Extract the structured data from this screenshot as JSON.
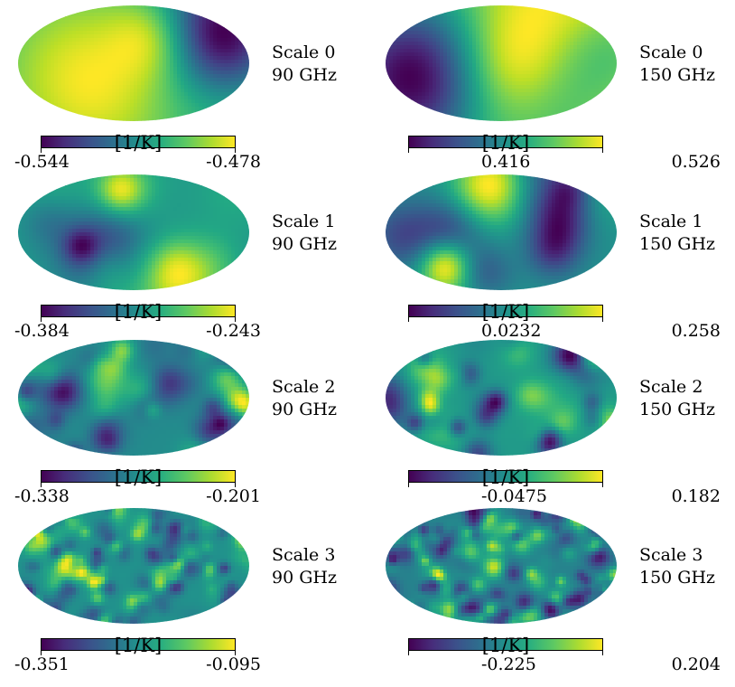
{
  "chart_data": [
    {
      "type": "heatmap",
      "projection": "mollweide",
      "scale_label": "Scale 0",
      "freq_label": "90 GHz",
      "colorbar": {
        "min": "-0.544",
        "max": "-0.478",
        "unit": "[1/K]",
        "colormap": "viridis"
      },
      "seed": 11,
      "blob_count": 6,
      "blob_size": 0.38
    },
    {
      "type": "heatmap",
      "projection": "mollweide",
      "scale_label": "Scale 0",
      "freq_label": "150 GHz",
      "colorbar": {
        "min": "0.416",
        "max": "0.526",
        "unit": "[1/K]",
        "colormap": "viridis"
      },
      "seed": 23,
      "blob_count": 6,
      "blob_size": 0.38
    },
    {
      "type": "heatmap",
      "projection": "mollweide",
      "scale_label": "Scale 1",
      "freq_label": "90 GHz",
      "colorbar": {
        "min": "-0.384",
        "max": "-0.243",
        "unit": "[1/K]",
        "colormap": "viridis"
      },
      "seed": 37,
      "blob_count": 18,
      "blob_size": 0.17
    },
    {
      "type": "heatmap",
      "projection": "mollweide",
      "scale_label": "Scale 1",
      "freq_label": "150 GHz",
      "colorbar": {
        "min": "0.0232",
        "max": "0.258",
        "unit": "[1/K]",
        "colormap": "viridis"
      },
      "seed": 41,
      "blob_count": 18,
      "blob_size": 0.17
    },
    {
      "type": "heatmap",
      "projection": "mollweide",
      "scale_label": "Scale 2",
      "freq_label": "90 GHz",
      "colorbar": {
        "min": "-0.338",
        "max": "-0.201",
        "unit": "[1/K]",
        "colormap": "viridis"
      },
      "seed": 53,
      "blob_count": 55,
      "blob_size": 0.085
    },
    {
      "type": "heatmap",
      "projection": "mollweide",
      "scale_label": "Scale 2",
      "freq_label": "150 GHz",
      "colorbar": {
        "min": "-0.0475",
        "max": "0.182",
        "unit": "[1/K]",
        "colormap": "viridis"
      },
      "seed": 67,
      "blob_count": 55,
      "blob_size": 0.085
    },
    {
      "type": "heatmap",
      "projection": "mollweide",
      "scale_label": "Scale 3",
      "freq_label": "90 GHz",
      "colorbar": {
        "min": "-0.351",
        "max": "-0.095",
        "unit": "[1/K]",
        "colormap": "viridis"
      },
      "seed": 79,
      "blob_count": 160,
      "blob_size": 0.045
    },
    {
      "type": "heatmap",
      "projection": "mollweide",
      "scale_label": "Scale 3",
      "freq_label": "150 GHz",
      "colorbar": {
        "min": "-0.225",
        "max": "0.204",
        "unit": "[1/K]",
        "colormap": "viridis"
      },
      "seed": 97,
      "blob_count": 160,
      "blob_size": 0.045
    }
  ]
}
